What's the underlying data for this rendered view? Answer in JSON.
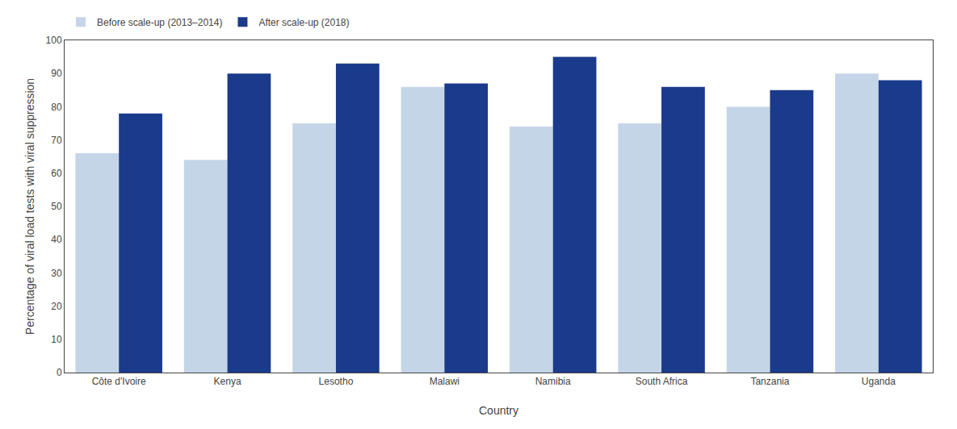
{
  "chart_data": {
    "type": "bar",
    "xlabel": "Country",
    "ylabel": "Percentage of viral load tests with viral suppression",
    "categories": [
      "Côte d'Ivoire",
      "Kenya",
      "Lesotho",
      "Malawi",
      "Namibia",
      "South Africa",
      "Tanzania",
      "Uganda"
    ],
    "series": [
      {
        "name": "Before scale-up (2013–2014)",
        "color": "#c5d5e8",
        "values": [
          66,
          64,
          75,
          86,
          74,
          75,
          80,
          90
        ]
      },
      {
        "name": "After scale-up (2018)",
        "color": "#1a3a8c",
        "values": [
          78,
          90,
          93,
          87,
          95,
          86,
          85,
          88
        ]
      }
    ],
    "ylim": [
      0,
      100
    ],
    "yticks": [
      0,
      10,
      20,
      30,
      40,
      50,
      60,
      70,
      80,
      90,
      100
    ],
    "grid": false,
    "legend": "upper left"
  }
}
